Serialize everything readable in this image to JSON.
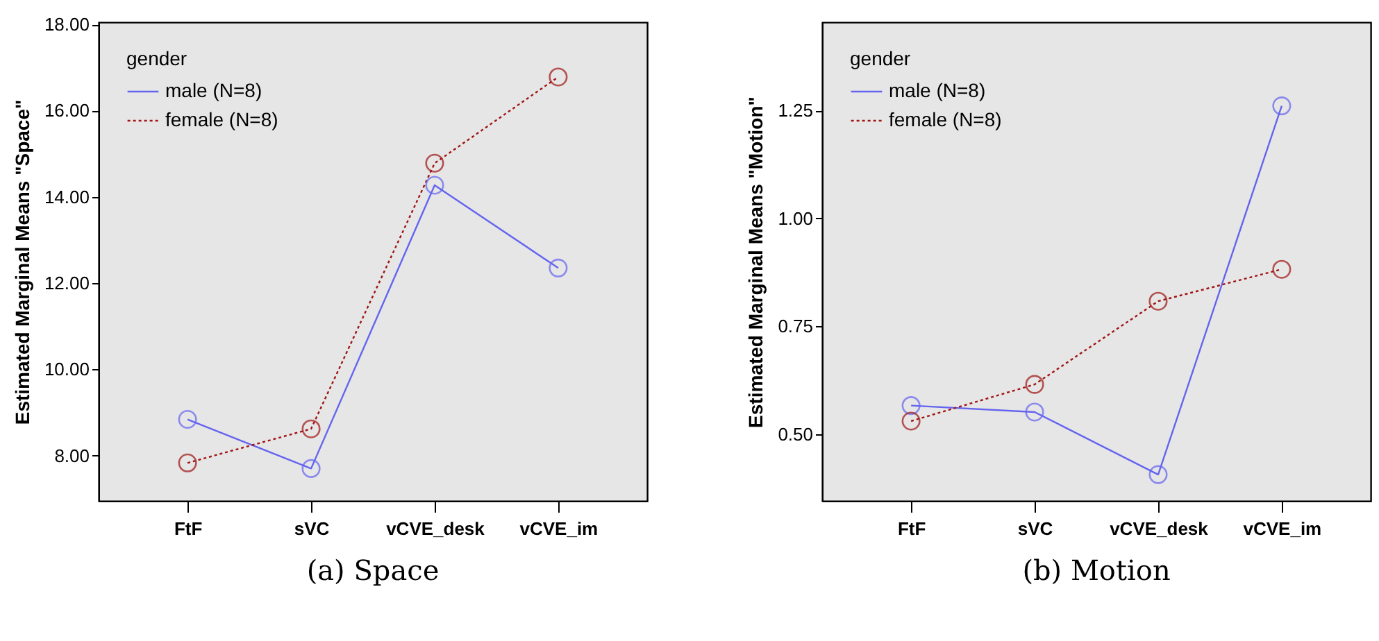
{
  "chart_data": [
    {
      "type": "line",
      "title": "(a) Space",
      "ylabel": "Estimated Marginal Means \"Space\"",
      "legend_title": "gender",
      "legend": "top left",
      "marker": "circle",
      "categories": [
        "FtF",
        "sVC",
        "vCVE_desk",
        "vCVE_im"
      ],
      "ylim": [
        6.95,
        18.05
      ],
      "yticks": [
        {
          "value": 8,
          "label": "8.00"
        },
        {
          "value": 10,
          "label": "10.00"
        },
        {
          "value": 12,
          "label": "12.00"
        },
        {
          "value": 14,
          "label": "14.00"
        },
        {
          "value": 16,
          "label": "16.00"
        },
        {
          "value": 18,
          "label": "18.00"
        }
      ],
      "series": [
        {
          "name": "male (N=8)",
          "color": "#6464f0",
          "line_style": "solid",
          "values": [
            8.84,
            7.7,
            14.27,
            12.35
          ]
        },
        {
          "name": "female (N=8)",
          "color": "#a01414",
          "line_style": "dotted",
          "values": [
            7.83,
            8.62,
            14.78,
            16.78
          ]
        }
      ]
    },
    {
      "type": "line",
      "title": "(b) Motion",
      "ylabel": "Estimated Marginal Means \"Motion\"",
      "legend_title": "gender",
      "legend": "top left",
      "marker": "circle",
      "categories": [
        "FtF",
        "sVC",
        "vCVE_desk",
        "vCVE_im"
      ],
      "ylim": [
        0.345,
        1.455
      ],
      "yticks": [
        {
          "value": 0.5,
          "label": "0.50"
        },
        {
          "value": 0.75,
          "label": "0.75"
        },
        {
          "value": 1.0,
          "label": "1.00"
        },
        {
          "value": 1.25,
          "label": "1.25"
        }
      ],
      "series": [
        {
          "name": "male (N=8)",
          "color": "#6464f0",
          "line_style": "solid",
          "values": [
            0.566,
            0.551,
            0.406,
            1.261
          ]
        },
        {
          "name": "female (N=8)",
          "color": "#a01414",
          "line_style": "dotted",
          "values": [
            0.53,
            0.615,
            0.808,
            0.882
          ]
        }
      ]
    }
  ]
}
